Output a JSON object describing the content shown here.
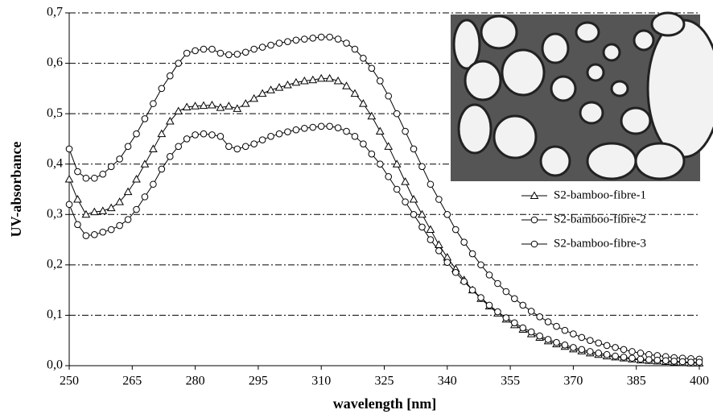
{
  "chart_data": {
    "type": "line",
    "xlabel": "wavelength [nm]",
    "ylabel": "UV-absorbance",
    "x": [
      250,
      252,
      254,
      256,
      258,
      260,
      262,
      264,
      266,
      268,
      270,
      272,
      274,
      276,
      278,
      280,
      282,
      284,
      286,
      288,
      290,
      292,
      294,
      296,
      298,
      300,
      302,
      304,
      306,
      308,
      310,
      312,
      314,
      316,
      318,
      320,
      322,
      324,
      326,
      328,
      330,
      332,
      334,
      336,
      338,
      340,
      342,
      344,
      346,
      348,
      350,
      352,
      354,
      356,
      358,
      360,
      362,
      364,
      366,
      368,
      370,
      372,
      374,
      376,
      378,
      380,
      382,
      384,
      386,
      388,
      390,
      392,
      394,
      396,
      398,
      400
    ],
    "series": [
      {
        "name": "S2-bamboo-fibre-1",
        "color": "#000000",
        "marker": "triangle",
        "values": [
          0.37,
          0.33,
          0.3,
          0.305,
          0.307,
          0.313,
          0.325,
          0.345,
          0.37,
          0.4,
          0.43,
          0.46,
          0.485,
          0.505,
          0.513,
          0.515,
          0.516,
          0.517,
          0.512,
          0.515,
          0.51,
          0.52,
          0.53,
          0.54,
          0.547,
          0.552,
          0.557,
          0.562,
          0.565,
          0.567,
          0.57,
          0.57,
          0.565,
          0.555,
          0.54,
          0.52,
          0.495,
          0.465,
          0.435,
          0.4,
          0.365,
          0.33,
          0.3,
          0.27,
          0.24,
          0.215,
          0.192,
          0.17,
          0.15,
          0.133,
          0.118,
          0.104,
          0.092,
          0.081,
          0.072,
          0.063,
          0.056,
          0.049,
          0.043,
          0.038,
          0.033,
          0.029,
          0.025,
          0.022,
          0.019,
          0.017,
          0.015,
          0.013,
          0.011,
          0.01,
          0.009,
          0.008,
          0.007,
          0.006,
          0.005,
          0.005
        ]
      },
      {
        "name": "S2-bamboo-fibre-2",
        "color": "#000000",
        "marker": "circle",
        "values": [
          0.43,
          0.385,
          0.372,
          0.372,
          0.38,
          0.395,
          0.41,
          0.435,
          0.46,
          0.49,
          0.52,
          0.55,
          0.575,
          0.6,
          0.62,
          0.625,
          0.628,
          0.628,
          0.62,
          0.617,
          0.618,
          0.622,
          0.628,
          0.632,
          0.636,
          0.64,
          0.643,
          0.646,
          0.648,
          0.65,
          0.652,
          0.652,
          0.648,
          0.64,
          0.628,
          0.61,
          0.59,
          0.565,
          0.535,
          0.5,
          0.465,
          0.43,
          0.395,
          0.36,
          0.33,
          0.3,
          0.27,
          0.245,
          0.222,
          0.2,
          0.18,
          0.163,
          0.147,
          0.133,
          0.12,
          0.108,
          0.097,
          0.087,
          0.078,
          0.07,
          0.063,
          0.056,
          0.05,
          0.045,
          0.04,
          0.036,
          0.032,
          0.028,
          0.025,
          0.022,
          0.02,
          0.018,
          0.016,
          0.015,
          0.014,
          0.013
        ]
      },
      {
        "name": "S2-bamboo-fibre-3",
        "color": "#000000",
        "marker": "circle",
        "values": [
          0.32,
          0.28,
          0.258,
          0.26,
          0.265,
          0.27,
          0.278,
          0.29,
          0.31,
          0.335,
          0.36,
          0.39,
          0.415,
          0.435,
          0.45,
          0.458,
          0.46,
          0.458,
          0.455,
          0.435,
          0.43,
          0.435,
          0.44,
          0.448,
          0.455,
          0.46,
          0.464,
          0.468,
          0.471,
          0.473,
          0.475,
          0.475,
          0.472,
          0.465,
          0.455,
          0.44,
          0.42,
          0.4,
          0.375,
          0.35,
          0.325,
          0.3,
          0.275,
          0.25,
          0.228,
          0.205,
          0.185,
          0.167,
          0.15,
          0.135,
          0.12,
          0.107,
          0.095,
          0.085,
          0.075,
          0.067,
          0.059,
          0.052,
          0.046,
          0.041,
          0.036,
          0.032,
          0.028,
          0.025,
          0.022,
          0.019,
          0.017,
          0.015,
          0.013,
          0.012,
          0.011,
          0.01,
          0.009,
          0.008,
          0.007,
          0.007
        ]
      }
    ],
    "xlim": [
      250,
      400
    ],
    "xticks": [
      250,
      265,
      280,
      295,
      310,
      325,
      340,
      355,
      370,
      385,
      400
    ],
    "ylim": [
      0,
      0.7
    ],
    "yticks": [
      {
        "value": 0,
        "label": "0,0"
      },
      {
        "value": 0.1,
        "label": "0,1"
      },
      {
        "value": 0.2,
        "label": "0,2"
      },
      {
        "value": 0.3,
        "label": "0,3"
      },
      {
        "value": 0.4,
        "label": "0,4"
      },
      {
        "value": 0.5,
        "label": "0,5"
      },
      {
        "value": 0.6,
        "label": "0,6"
      },
      {
        "value": 0.7,
        "label": "0,7"
      }
    ],
    "grid": true
  }
}
